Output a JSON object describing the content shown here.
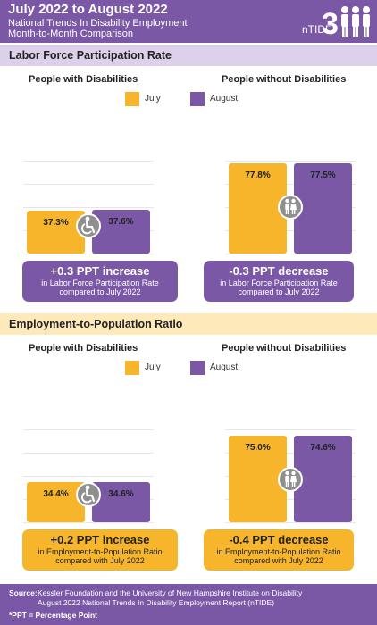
{
  "header": {
    "title": "July 2022 to August 2022",
    "subtitle_1": "National Trends In Disability Employment",
    "subtitle_2": "Month-to-Month Comparison",
    "logo_text": "nTIDE"
  },
  "colors": {
    "july": "#f6b52a",
    "august": "#7a58a6",
    "header": "#7a58a6",
    "section1": "#ddd0ea",
    "section2": "#fde9b9",
    "icon": "#8f8f8f"
  },
  "legend": {
    "july": "July",
    "august": "August"
  },
  "chart_data": [
    {
      "type": "bar",
      "title": "Labor Force Participation Rate",
      "unit": "%",
      "ylim": [
        0,
        100
      ],
      "groups": [
        {
          "name": "People with Disabilities",
          "icon": "wheelchair-icon",
          "july": 37.3,
          "august": 37.6,
          "july_label": "37.3%",
          "august_label": "37.6%",
          "change": "+0.3 PPT increase",
          "desc_1": "in Labor Force Participation Rate",
          "desc_2": "compared to July 2022"
        },
        {
          "name": "People without Disabilities",
          "icon": "people-icon",
          "july": 77.8,
          "august": 77.5,
          "july_label": "77.8%",
          "august_label": "77.5%",
          "change": "-0.3 PPT decrease",
          "desc_1": "in Labor Force Participation Rate",
          "desc_2": "compared to July 2022"
        }
      ]
    },
    {
      "type": "bar",
      "title": "Employment-to-Population Ratio",
      "unit": "%",
      "ylim": [
        0,
        100
      ],
      "groups": [
        {
          "name": "People with Disabilities",
          "icon": "wheelchair-icon",
          "july": 34.4,
          "august": 34.6,
          "july_label": "34.4%",
          "august_label": "34.6%",
          "change": "+0.2 PPT increase",
          "desc_1": "in Employment-to-Population Ratio",
          "desc_2": "compared with July 2022"
        },
        {
          "name": "People without Disabilities",
          "icon": "people-icon",
          "july": 75.0,
          "august": 74.6,
          "july_label": "75.0%",
          "august_label": "74.6%",
          "change": "-0.4 PPT decrease",
          "desc_1": "in Employment-to-Population Ratio",
          "desc_2": "compared with July 2022"
        }
      ]
    }
  ],
  "footer": {
    "source_label": "Source:",
    "source_1": "Kessler Foundation and the University of New Hampshire Institute on Disability",
    "source_2": "August 2022 National Trends In Disability Employment Report (nTIDE)",
    "ppt_note": "*PPT = Percentage Point"
  }
}
